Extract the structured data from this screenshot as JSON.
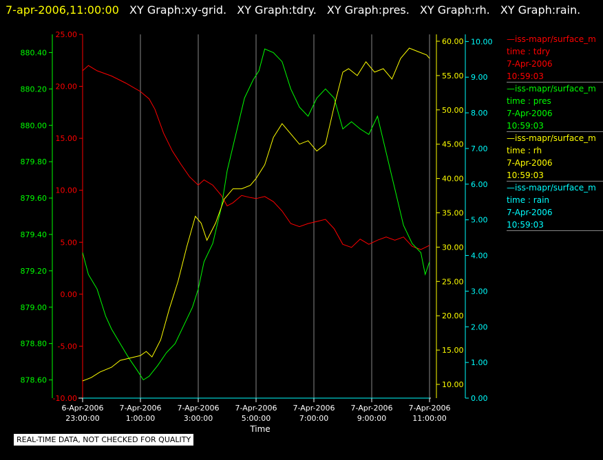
{
  "title_bar": {
    "timestamp": "7-apr-2006,11:00:00",
    "graphs": [
      "XY Graph:xy-grid.",
      "XY Graph:tdry.",
      "XY Graph:pres.",
      "XY Graph:rh.",
      "XY Graph:rain."
    ]
  },
  "quality_note": "REAL-TIME DATA, NOT CHECKED FOR QUALITY",
  "legend": [
    {
      "name": "—iss-mapr/surface_m",
      "field": "time : tdry",
      "date": "7-Apr-2006",
      "time": "10:59:03",
      "color": "#ff0000"
    },
    {
      "name": "—iss-mapr/surface_m",
      "field": "time : pres",
      "date": "7-Apr-2006",
      "time": "10:59:03",
      "color": "#00ff00"
    },
    {
      "name": "—iss-mapr/surface_m",
      "field": "time : rh",
      "date": "7-Apr-2006",
      "time": "10:59:03",
      "color": "#ffff00"
    },
    {
      "name": "—iss-mapr/surface_m",
      "field": "time : rain",
      "date": "7-Apr-2006",
      "time": "10:59:03",
      "color": "#00ffff"
    }
  ],
  "chart_data": {
    "type": "line",
    "xlabel": "Time",
    "x_ticks": [
      {
        "line1": "6-Apr-2006",
        "line2": "23:00:00",
        "t": 23.0
      },
      {
        "line1": "7-Apr-2006",
        "line2": "1:00:00",
        "t": 25.0
      },
      {
        "line1": "7-Apr-2006",
        "line2": "3:00:00",
        "t": 27.0
      },
      {
        "line1": "7-Apr-2006",
        "line2": "5:00:00",
        "t": 29.0
      },
      {
        "line1": "7-Apr-2006",
        "line2": "7:00:00",
        "t": 31.0
      },
      {
        "line1": "7-Apr-2006",
        "line2": "9:00:00",
        "t": 33.0
      },
      {
        "line1": "7-Apr-2006",
        "line2": "11:00:00",
        "t": 35.0
      }
    ],
    "xlim": [
      23.0,
      35.0
    ],
    "grid": "vertical",
    "axes": [
      {
        "id": "tdry",
        "color": "#ff0000",
        "ylim": [
          -10,
          25
        ],
        "ticks": [
          "-10.00",
          "-5.00",
          "0.00",
          "5.00",
          "10.00",
          "15.00",
          "20.00",
          "25.00"
        ],
        "tick_values": [
          -10,
          -5,
          0,
          5,
          10,
          15,
          20,
          25
        ]
      },
      {
        "id": "pres",
        "color": "#00ff00",
        "ylim": [
          878.5,
          880.5
        ],
        "ticks": [
          "878.60",
          "878.80",
          "879.00",
          "879.20",
          "879.40",
          "879.60",
          "879.80",
          "880.00",
          "880.20",
          "880.40"
        ],
        "tick_values": [
          878.6,
          878.8,
          879.0,
          879.2,
          879.4,
          879.6,
          879.8,
          880.0,
          880.2,
          880.4
        ]
      },
      {
        "id": "rh",
        "color": "#ffff00",
        "ylim": [
          8,
          61
        ],
        "ticks": [
          "10.00",
          "15.00",
          "20.00",
          "25.00",
          "30.00",
          "35.00",
          "40.00",
          "45.00",
          "50.00",
          "55.00",
          "60.00"
        ],
        "tick_values": [
          10,
          15,
          20,
          25,
          30,
          35,
          40,
          45,
          50,
          55,
          60
        ]
      },
      {
        "id": "rain",
        "color": "#00ffff",
        "ylim": [
          0,
          10.2
        ],
        "ticks": [
          "0.00",
          "1.00",
          "2.00",
          "3.00",
          "4.00",
          "5.00",
          "6.00",
          "7.00",
          "8.00",
          "9.00",
          "10.00"
        ],
        "tick_values": [
          0,
          1,
          2,
          3,
          4,
          5,
          6,
          7,
          8,
          9,
          10
        ]
      }
    ],
    "series": [
      {
        "axis": "tdry",
        "color": "#ff0000",
        "x": [
          23.0,
          23.2,
          23.5,
          24.0,
          24.5,
          25.0,
          25.3,
          25.5,
          25.8,
          26.1,
          26.4,
          26.7,
          27.0,
          27.2,
          27.5,
          27.8,
          28.0,
          28.2,
          28.5,
          28.8,
          29.0,
          29.3,
          29.6,
          29.9,
          30.2,
          30.5,
          30.8,
          31.1,
          31.4,
          31.7,
          32.0,
          32.3,
          32.6,
          32.9,
          33.2,
          33.5,
          33.8,
          34.1,
          34.4,
          34.7,
          35.0
        ],
        "values": [
          21.5,
          22.0,
          21.5,
          21.0,
          20.3,
          19.5,
          18.8,
          17.8,
          15.5,
          13.8,
          12.5,
          11.3,
          10.5,
          11.0,
          10.5,
          9.5,
          8.5,
          8.8,
          9.5,
          9.3,
          9.2,
          9.4,
          8.9,
          8.0,
          6.8,
          6.5,
          6.8,
          7.0,
          7.2,
          6.3,
          4.8,
          4.5,
          5.3,
          4.8,
          5.2,
          5.5,
          5.2,
          5.5,
          4.6,
          4.3,
          4.7
        ]
      },
      {
        "axis": "pres",
        "color": "#00ff00",
        "x": [
          23.0,
          23.2,
          23.5,
          23.8,
          24.0,
          24.3,
          24.6,
          24.9,
          25.1,
          25.3,
          25.6,
          25.9,
          26.2,
          26.5,
          26.8,
          27.0,
          27.2,
          27.5,
          27.8,
          28.0,
          28.3,
          28.6,
          28.9,
          29.1,
          29.3,
          29.6,
          29.9,
          30.2,
          30.5,
          30.8,
          31.1,
          31.4,
          31.7,
          32.0,
          32.3,
          32.6,
          32.9,
          33.2,
          33.5,
          33.8,
          34.1,
          34.4,
          34.7,
          34.85,
          35.0
        ],
        "values": [
          879.3,
          879.18,
          879.1,
          878.95,
          878.88,
          878.8,
          878.72,
          878.65,
          878.6,
          878.62,
          878.68,
          878.75,
          878.8,
          878.9,
          879.0,
          879.1,
          879.25,
          879.35,
          879.55,
          879.75,
          879.95,
          880.15,
          880.25,
          880.3,
          880.42,
          880.4,
          880.35,
          880.2,
          880.1,
          880.05,
          880.15,
          880.2,
          880.15,
          879.98,
          880.02,
          879.98,
          879.95,
          880.05,
          879.85,
          879.65,
          879.45,
          879.35,
          879.3,
          879.18,
          879.25
        ]
      },
      {
        "axis": "rh",
        "color": "#yellow-placeholder",
        "x": [
          23.0,
          23.3,
          23.6,
          24.0,
          24.3,
          24.6,
          25.0,
          25.2,
          25.4,
          25.7,
          26.0,
          26.3,
          26.6,
          26.9,
          27.1,
          27.3,
          27.6,
          27.9,
          28.2,
          28.5,
          28.8,
          29.0,
          29.3,
          29.6,
          29.9,
          30.2,
          30.5,
          30.8,
          31.1,
          31.4,
          31.7,
          32.0,
          32.2,
          32.5,
          32.8,
          33.1,
          33.4,
          33.7,
          34.0,
          34.3,
          34.6,
          34.9,
          35.0
        ],
        "values": [
          10.5,
          11.0,
          11.8,
          12.5,
          13.5,
          13.8,
          14.2,
          14.8,
          14.0,
          16.5,
          21.0,
          25.0,
          30.0,
          34.5,
          33.5,
          31.0,
          33.5,
          37.0,
          38.5,
          38.5,
          39.0,
          40.0,
          42.0,
          46.0,
          48.0,
          46.5,
          45.0,
          45.5,
          44.0,
          45.0,
          50.5,
          55.5,
          56.0,
          55.0,
          57.0,
          55.5,
          56.0,
          54.5,
          57.5,
          59.0,
          58.5,
          58.0,
          57.5
        ]
      },
      {
        "axis": "rain",
        "color": "#00ffff",
        "x": [
          23.0,
          35.0
        ],
        "values": [
          0.0,
          0.0
        ]
      }
    ]
  }
}
